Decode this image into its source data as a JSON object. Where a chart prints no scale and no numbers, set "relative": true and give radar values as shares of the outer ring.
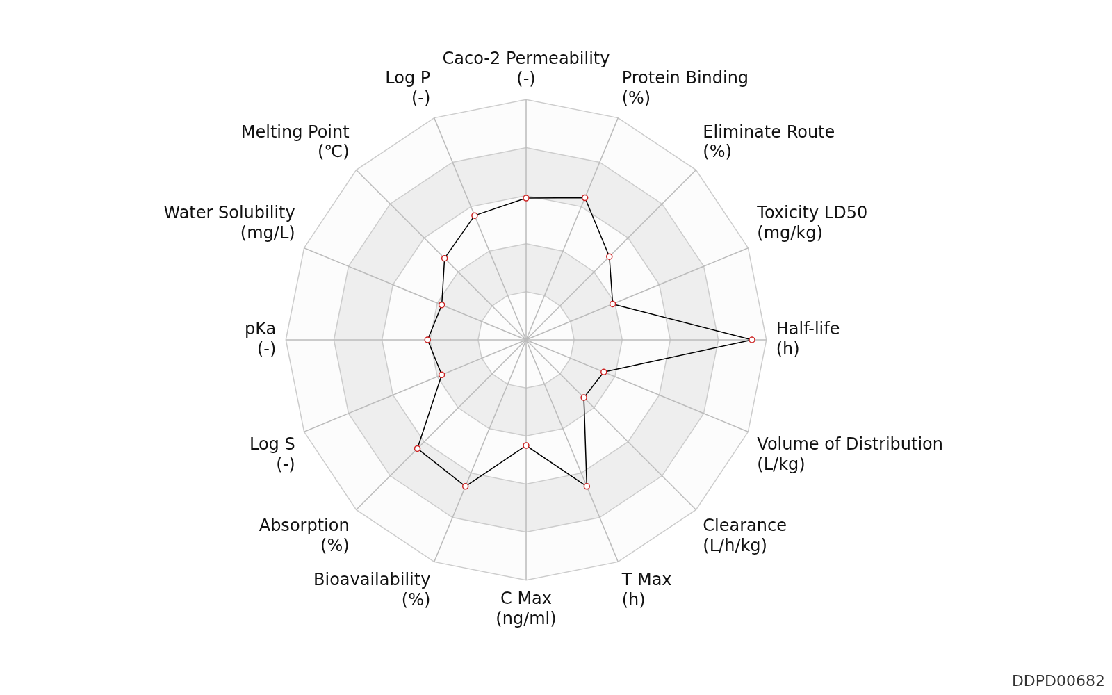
{
  "chart_data": {
    "type": "radar",
    "relative": true,
    "marker": "circle",
    "grid": true,
    "legend": false,
    "categories": [
      "Caco-2 Permeability\n(-)",
      "Protein Binding\n(%)",
      "Eliminate Route\n(%)",
      "Toxicity LD50\n(mg/kg)",
      "Half-life\n(h)",
      "Volume of Distribution\n(L/kg)",
      "Clearance\n(L/h/kg)",
      "T Max\n(h)",
      "C Max\n(ng/ml)",
      "Bioavailability\n(%)",
      "Absorption\n(%)",
      "Log S\n(-)",
      "pKa\n(-)",
      "Water Solubility\n(mg/L)",
      "Melting Point\n(℃)",
      "Log P\n(-)"
    ],
    "series": [
      {
        "color": "#000000",
        "values": [
          0.59,
          0.64,
          0.49,
          0.39,
          0.94,
          0.35,
          0.34,
          0.66,
          0.44,
          0.66,
          0.64,
          0.38,
          0.41,
          0.38,
          0.48,
          0.56
        ]
      }
    ],
    "annotations": [
      "DDPD00682"
    ]
  }
}
